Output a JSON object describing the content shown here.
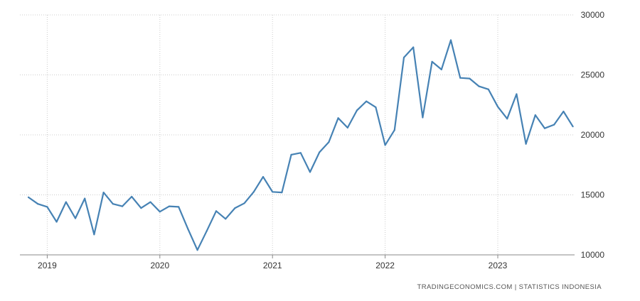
{
  "source_text": "TRADINGECONOMICS.COM  |  STATISTICS INDONESIA",
  "colors": {
    "line": "#4682b4",
    "grid": "#cccccc",
    "axis": "#888888"
  },
  "chart_data": {
    "type": "line",
    "title": "",
    "xlabel": "",
    "ylabel": "",
    "ylim": [
      10000,
      30000
    ],
    "y_ticks": [
      10000,
      15000,
      20000,
      25000,
      30000
    ],
    "x_ticks": [
      "2019",
      "2020",
      "2021",
      "2022",
      "2023"
    ],
    "grid": true,
    "y_axis_position": "right",
    "x": [
      "2018-11",
      "2018-12",
      "2019-01",
      "2019-02",
      "2019-03",
      "2019-04",
      "2019-05",
      "2019-06",
      "2019-07",
      "2019-08",
      "2019-09",
      "2019-10",
      "2019-11",
      "2019-12",
      "2020-01",
      "2020-02",
      "2020-03",
      "2020-04",
      "2020-05",
      "2020-06",
      "2020-07",
      "2020-08",
      "2020-09",
      "2020-10",
      "2020-11",
      "2020-12",
      "2021-01",
      "2021-02",
      "2021-03",
      "2021-04",
      "2021-05",
      "2021-06",
      "2021-07",
      "2021-08",
      "2021-09",
      "2021-10",
      "2021-11",
      "2021-12",
      "2022-01",
      "2022-02",
      "2022-03",
      "2022-04",
      "2022-05",
      "2022-06",
      "2022-07",
      "2022-08",
      "2022-09",
      "2022-10",
      "2022-11",
      "2022-12",
      "2023-01",
      "2023-02",
      "2023-03",
      "2023-04",
      "2023-05",
      "2023-06",
      "2023-07",
      "2023-08",
      "2023-09"
    ],
    "series": [
      {
        "values": [
          14800,
          14250,
          14000,
          12750,
          14400,
          13050,
          14700,
          11700,
          15200,
          14250,
          14050,
          14850,
          13900,
          14400,
          13600,
          14050,
          14000,
          12150,
          10400,
          12000,
          13650,
          13000,
          13900,
          14300,
          15250,
          16500,
          15250,
          15200,
          18350,
          18500,
          16900,
          18550,
          19400,
          21400,
          20600,
          22050,
          22800,
          22300,
          19150,
          20400,
          26450,
          27300,
          21450,
          26100,
          25450,
          27900,
          24750,
          24700,
          24050,
          23800,
          22350,
          21350,
          23400,
          19250,
          21650,
          20550,
          20850,
          21950,
          20700
        ]
      }
    ]
  }
}
